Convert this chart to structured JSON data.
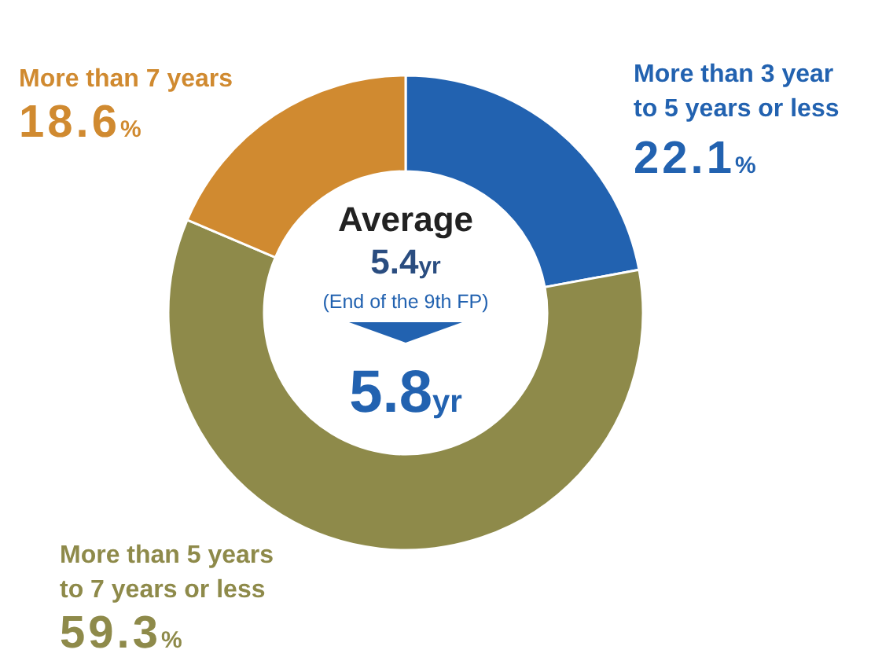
{
  "chart_data": {
    "type": "donut",
    "categories": [
      "More than 3 year to 5 years or less",
      "More than 5 years to 7 years or less",
      "More than 7 years"
    ],
    "values": [
      22.1,
      59.3,
      18.6
    ],
    "colors": [
      "#2262b0",
      "#8e8a4a",
      "#d08a30"
    ],
    "value_labels": [
      "22.1%",
      "59.3%",
      "18.6%"
    ],
    "annotations": [
      "Average",
      "5.4yr",
      "(End of the 9th FP)",
      "5.8yr"
    ]
  }
}
